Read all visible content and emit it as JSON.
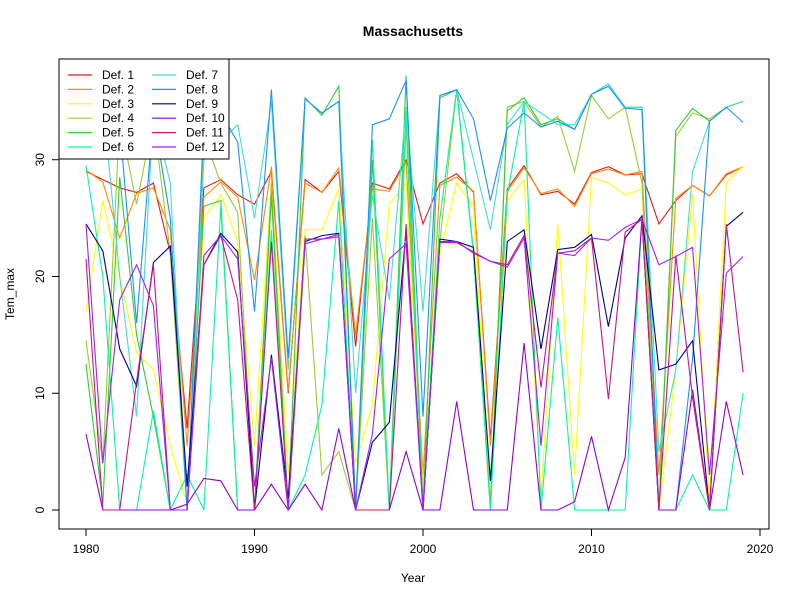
{
  "chart_data": {
    "type": "line",
    "title": "Massachusetts",
    "xlabel": "Year",
    "ylabel": "Tem_max",
    "xlim": [
      1980,
      2019
    ],
    "ylim": [
      0,
      37
    ],
    "x_ticks": [
      1980,
      1990,
      2000,
      2010,
      2020
    ],
    "y_ticks": [
      0,
      10,
      20,
      30
    ],
    "legend_position": "top-left",
    "x": [
      1980,
      1981,
      1982,
      1983,
      1984,
      1985,
      1986,
      1987,
      1988,
      1989,
      1990,
      1991,
      1992,
      1993,
      1994,
      1995,
      1996,
      1997,
      1998,
      1999,
      2000,
      2001,
      2002,
      2003,
      2004,
      2005,
      2006,
      2007,
      2008,
      2009,
      2010,
      2011,
      2012,
      2013,
      2014,
      2015,
      2016,
      2017,
      2018,
      2019
    ],
    "series": [
      {
        "name": "Def. 1",
        "color": "#e41a1c",
        "values": [
          29,
          28.3,
          27.6,
          27.2,
          28,
          22,
          7,
          27.6,
          28.3,
          27,
          26.2,
          29,
          10,
          28.3,
          27.2,
          29,
          14,
          28,
          27.5,
          30,
          24.5,
          28,
          28.8,
          27.2,
          6,
          27.5,
          29.5,
          27,
          27.3,
          26.2,
          28.9,
          29.4,
          28.7,
          28.8,
          24.5,
          26.5,
          27.8,
          26.9,
          28.7,
          29.4
        ]
      },
      {
        "name": "Def. 2",
        "color": "#ff8c00",
        "values": [
          29.1,
          28.1,
          23.3,
          27.1,
          27.6,
          24,
          5.5,
          26.8,
          28.1,
          26.8,
          19.7,
          29.4,
          10.2,
          28,
          27.2,
          29.3,
          15,
          27.5,
          27.3,
          29.8,
          3,
          27.8,
          28.5,
          27.3,
          5.5,
          27.3,
          29.3,
          27.1,
          27.5,
          26,
          28.8,
          29.2,
          28.7,
          29,
          3,
          26.7,
          27.8,
          26.9,
          28.8,
          29.4
        ]
      },
      {
        "name": "Def. 3",
        "color": "#ffff00",
        "values": [
          17,
          26.5,
          20,
          13.5,
          12,
          5.5,
          0.5,
          25,
          27,
          23,
          5.5,
          28,
          3,
          24,
          24,
          27.5,
          4,
          9,
          26.2,
          28,
          2,
          22,
          28,
          26,
          0.5,
          26.5,
          28.3,
          1,
          24.5,
          3,
          28.5,
          28,
          27,
          27.5,
          0,
          12,
          27,
          0.5,
          28,
          29.5
        ]
      },
      {
        "name": "Def. 4",
        "color": "#9acd32",
        "values": [
          14.5,
          4,
          33.5,
          26.2,
          33.5,
          22,
          0,
          32,
          28,
          25.5,
          0,
          28,
          0,
          23.5,
          3,
          5,
          0,
          25,
          0,
          33,
          0,
          23,
          36,
          22,
          0.5,
          34.5,
          35,
          32.8,
          33.7,
          29,
          35.5,
          33.5,
          34.5,
          28,
          0,
          32,
          34,
          33.5,
          34.5,
          35
        ]
      },
      {
        "name": "Def. 5",
        "color": "#32cd32",
        "values": [
          12.5,
          0.5,
          28.5,
          15,
          8,
          0,
          0,
          26,
          26.5,
          0,
          0,
          27,
          0,
          35.3,
          33.8,
          36.3,
          0,
          30,
          0,
          37.2,
          0,
          35.3,
          36,
          22,
          0,
          34.2,
          35.3,
          33,
          33.5,
          32.6,
          35.6,
          36.3,
          34.5,
          34.5,
          0,
          32.5,
          34.4,
          33.3,
          34.5,
          35
        ]
      },
      {
        "name": "Def. 6",
        "color": "#00fa9a",
        "values": [
          29.5,
          20,
          0,
          0,
          8.5,
          0,
          3,
          0,
          26,
          0,
          0,
          24,
          0,
          3,
          9,
          26.5,
          0,
          31.7,
          0,
          34,
          0,
          25,
          36,
          22,
          0,
          27,
          35,
          0,
          16.5,
          0,
          0,
          0,
          0,
          25,
          0,
          0,
          3,
          0,
          0,
          10
        ]
      },
      {
        "name": "Def. 7",
        "color": "#40e0d0",
        "values": [
          36,
          35,
          20,
          8,
          34,
          28,
          0,
          30,
          31.5,
          33,
          25,
          35,
          12,
          35.2,
          34,
          35,
          10,
          27,
          18,
          34.5,
          17,
          35.5,
          36,
          30,
          24,
          33,
          35,
          34,
          33,
          33,
          35.6,
          36.5,
          34.5,
          34.5,
          5,
          12,
          29,
          33.3,
          34.5,
          35
        ]
      },
      {
        "name": "Def. 8",
        "color": "#1e90ff",
        "values": [
          35.7,
          35,
          33,
          16,
          33.8,
          25,
          0,
          33.5,
          34,
          31.5,
          17,
          36,
          13,
          35.2,
          34,
          35,
          0,
          33,
          33.5,
          36.8,
          8,
          35.5,
          36,
          33.5,
          26.5,
          32.7,
          34,
          32.8,
          33.3,
          32.6,
          35.6,
          36.3,
          34.4,
          34.3,
          0,
          0,
          13,
          33.3,
          34.5,
          33.2
        ]
      },
      {
        "name": "Def. 9",
        "color": "#00008b",
        "values": [
          24.5,
          22.2,
          13.8,
          10.6,
          21.2,
          22.6,
          2,
          21,
          23.7,
          22.1,
          0,
          13.3,
          1,
          23,
          23.5,
          23.7,
          0,
          5.8,
          7.5,
          24,
          0,
          23.2,
          23,
          22.5,
          2.5,
          23,
          24,
          13.8,
          22.3,
          22.5,
          23.6,
          15.7,
          23.3,
          25.2,
          12,
          12.5,
          14.5,
          0,
          24.3,
          25.5
        ]
      },
      {
        "name": "Def. 10",
        "color": "#9400d3",
        "values": [
          6.5,
          0,
          0,
          0,
          0,
          0,
          0.5,
          2.7,
          2.5,
          0,
          0,
          2.2,
          0,
          2.2,
          0,
          7,
          0,
          0,
          0,
          5,
          0,
          0,
          9.3,
          0,
          0,
          0,
          14.3,
          0,
          0,
          0.7,
          6.3,
          0,
          4.5,
          25,
          0,
          0,
          10.3,
          0,
          9.3,
          3
        ]
      },
      {
        "name": "Def. 11",
        "color": "#c71585",
        "values": [
          21.5,
          0,
          0,
          11,
          21,
          0,
          0,
          21,
          23.5,
          18,
          0,
          23,
          0,
          23.2,
          23.2,
          23.6,
          0,
          0,
          0,
          24.5,
          0,
          23,
          23,
          22,
          21.3,
          21,
          23.5,
          10.5,
          22,
          22.2,
          23.3,
          9.5,
          23.8,
          24.9,
          0,
          21.8,
          9.6,
          0,
          24.5,
          11.8
        ]
      },
      {
        "name": "Def. 12",
        "color": "#a020f0",
        "values": [
          24.5,
          4,
          18,
          21,
          17.5,
          0,
          0,
          21.8,
          23.5,
          21.5,
          2,
          13,
          0,
          22.8,
          23.2,
          23.4,
          0,
          6.5,
          21.5,
          22.8,
          0,
          22.9,
          22.9,
          22.1,
          21.3,
          20.8,
          23.3,
          5.5,
          22,
          21.8,
          23.3,
          23.1,
          24.2,
          24.9,
          21,
          21.7,
          22.5,
          3,
          20.3,
          21.7
        ]
      }
    ]
  }
}
